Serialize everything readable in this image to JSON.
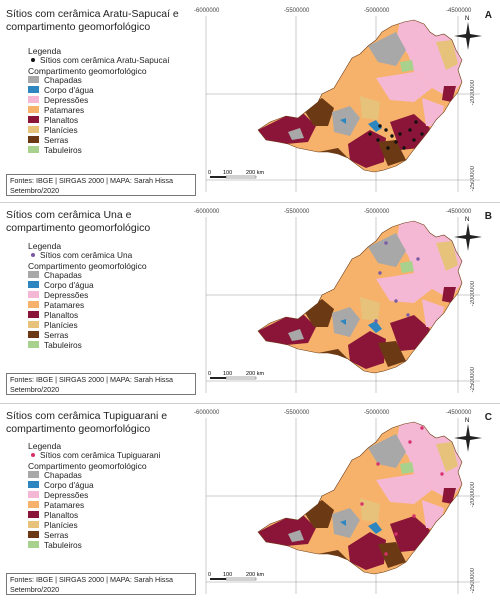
{
  "panels": [
    {
      "letter": "A",
      "title": "Sítios com cerâmica Aratu-Sapucaí e compartimento geomorfológico",
      "legend_title": "Legenda",
      "site_label": "Sítios com cerâmica Aratu-Sapucaí",
      "site_color": "#111111",
      "compartment_title": "Compartimento geomorfológico",
      "source": "Fontes: IBGE | SIRGAS 2000 | MAPA: Sarah Hissa Setembro/2020"
    },
    {
      "letter": "B",
      "title": "Sítios com cerâmica Una e compartimento geomorfológico",
      "legend_title": "Legenda",
      "site_label": "Sítios com cerâmica Una",
      "site_color": "#7b5aa6",
      "compartment_title": "Compartimento geomorfológico",
      "source": "Fontes: IBGE | SIRGAS 2000 | MAPA: Sarah Hissa Setembro/2020"
    },
    {
      "letter": "C",
      "title": "Sítios com cerâmica Tupiguarani e compartimento geomorfológico",
      "legend_title": "Legenda",
      "site_label": "Sítios com cerâmica Tupiguarani",
      "site_color": "#d8326e",
      "compartment_title": "Compartimento geomorfológico",
      "source": "Fontes: IBGE | SIRGAS 2000 | MAPA: Sarah Hissa Setembro/2020"
    }
  ],
  "compartments": [
    {
      "label": "Chapadas",
      "color": "#a8a8a8"
    },
    {
      "label": "Corpo d'água",
      "color": "#2e86c1"
    },
    {
      "label": "Depressões",
      "color": "#f5b8d4"
    },
    {
      "label": "Patamares",
      "color": "#f6b26b"
    },
    {
      "label": "Planaltos",
      "color": "#8b1538"
    },
    {
      "label": "Planícies",
      "color": "#e6c27a"
    },
    {
      "label": "Serras",
      "color": "#6b3a14"
    },
    {
      "label": "Tabuleiros",
      "color": "#a9d18e"
    }
  ],
  "x_ticks": [
    "-6000000",
    "-5500000",
    "-5000000",
    "-4500000"
  ],
  "y_ticks": [
    "-2000000",
    "-2500000"
  ],
  "scale_labels": [
    "0",
    "100",
    "200 km"
  ],
  "north_label": "N",
  "map_colors": {
    "graticule": "#9a9a9a",
    "outline": "#6b3a14"
  }
}
